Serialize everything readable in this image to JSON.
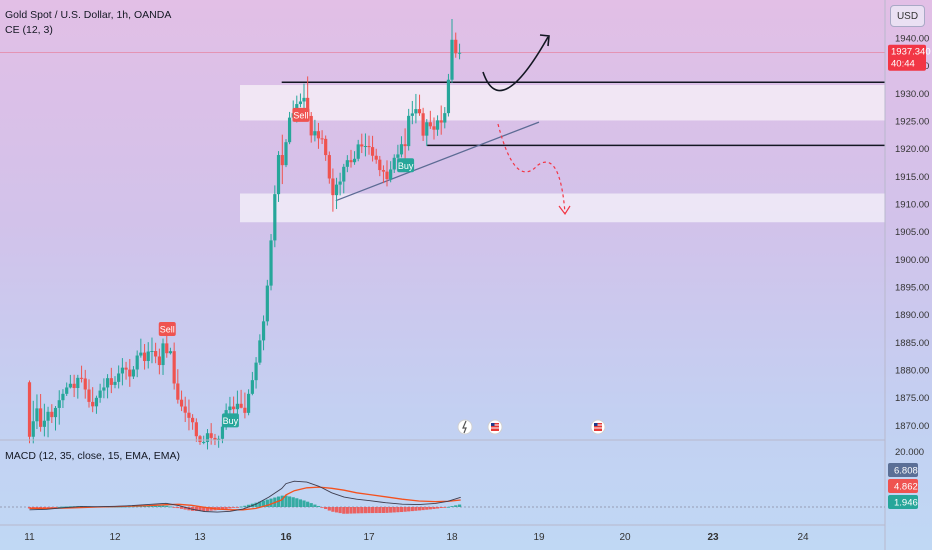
{
  "header": {
    "symbol_line": "Gold Spot / U.S. Dollar, 1h, OANDA",
    "indicator_line": "CE (12, 3)",
    "currency_button": "USD"
  },
  "price_badge": {
    "price": "1937.340",
    "countdown": "40:44",
    "color": "#f23645"
  },
  "macd": {
    "label": "MACD (12, 35, close, 15, EMA, EMA)",
    "axis_top_label": "20.000",
    "badges": [
      {
        "text": "6.808",
        "color": "#5b6f96"
      },
      {
        "text": "4.862",
        "color": "#ef5350"
      },
      {
        "text": "1.946",
        "color": "#26a69a"
      }
    ]
  },
  "colors": {
    "up": "#26a69a",
    "down": "#ef5350",
    "macd_line": "#3d3d4f",
    "signal_line": "#f4511e"
  },
  "chart_data": {
    "type": "candlestick",
    "instrument": "Gold Spot / U.S. Dollar",
    "timeframe": "1h",
    "y_ticks": [
      1940,
      1935,
      1930,
      1925,
      1920,
      1915,
      1910,
      1905,
      1900,
      1895,
      1890,
      1885,
      1880,
      1875,
      1870
    ],
    "y_tick_labels": [
      "1940.00",
      "1935.00",
      "1930.00",
      "1925.00",
      "1920.00",
      "1915.00",
      "1910.00",
      "1905.00",
      "1900.00",
      "1895.00",
      "1890.00",
      "1885.00",
      "1880.00",
      "1875.00",
      "1870.00"
    ],
    "x_ticks": [
      "11",
      "12",
      "13",
      "16",
      "17",
      "18",
      "19",
      "20",
      "23",
      "24"
    ],
    "x_tick_days": [
      11,
      12,
      13,
      16,
      17,
      18,
      19,
      20,
      23,
      24
    ],
    "current_price": 1937.34,
    "ohlc": [
      [
        11,
        1877.78,
        1878.09,
        1866.76,
        1867.93
      ],
      [
        11.044,
        1867.93,
        1874.43,
        1866.74,
        1870.73
      ],
      [
        11.087,
        1870.73,
        1875.59,
        1869.32,
        1873.06
      ],
      [
        11.13,
        1873.06,
        1875.66,
        1868.85,
        1869.72
      ],
      [
        11.174,
        1869.72,
        1873.9,
        1867.99,
        1870.83
      ],
      [
        11.217,
        1870.83,
        1873.35,
        1867.84,
        1872.44
      ],
      [
        11.261,
        1872.44,
        1873.82,
        1870.42,
        1871.48
      ],
      [
        11.304,
        1871.48,
        1873.49,
        1869.06,
        1873.14
      ],
      [
        11.348,
        1873.14,
        1876.34,
        1870.12,
        1874.54
      ],
      [
        11.391,
        1874.54,
        1876.54,
        1873.13,
        1875.69
      ],
      [
        11.435,
        1875.69,
        1877.74,
        1875.3,
        1876.84
      ],
      [
        11.478,
        1876.84,
        1879.11,
        1876.66,
        1877.51
      ],
      [
        11.522,
        1877.51,
        1879.14,
        1875.11,
        1876.74
      ],
      [
        11.565,
        1876.74,
        1879.12,
        1874.82,
        1878.58
      ],
      [
        11.609,
        1878.58,
        1880.78,
        1877.74,
        1878.46
      ],
      [
        11.652,
        1878.46,
        1880.02,
        1874.82,
        1876.47
      ],
      [
        11.696,
        1876.47,
        1878.31,
        1873.2,
        1874.23
      ],
      [
        11.739,
        1874.23,
        1876.9,
        1872.37,
        1873.43
      ],
      [
        11.783,
        1873.43,
        1875.36,
        1872.08,
        1874.97
      ],
      [
        11.826,
        1874.97,
        1877.51,
        1874.08,
        1876.28
      ],
      [
        11.87,
        1876.28,
        1878.49,
        1874.89,
        1876.84
      ],
      [
        11.913,
        1876.84,
        1879.25,
        1874.87,
        1878.52
      ],
      [
        11.957,
        1878.52,
        1880.39,
        1875.82,
        1877.3
      ],
      [
        12,
        1877.3,
        1878.88,
        1876.7,
        1877.85
      ],
      [
        12.043,
        1877.85,
        1880.82,
        1876.66,
        1879.37
      ],
      [
        12.087,
        1879.37,
        1882.15,
        1877.22,
        1880.42
      ],
      [
        12.13,
        1880.42,
        1881.47,
        1878.25,
        1880.07
      ],
      [
        12.174,
        1880.07,
        1881.98,
        1876.95,
        1878.82
      ],
      [
        12.217,
        1878.82,
        1880.71,
        1878.37,
        1880.09
      ],
      [
        12.261,
        1880.09,
        1883.52,
        1878.7,
        1882.61
      ],
      [
        12.304,
        1882.61,
        1885.66,
        1882.23,
        1883.14
      ],
      [
        12.348,
        1883.14,
        1884.69,
        1880.07,
        1881.62
      ],
      [
        12.391,
        1881.62,
        1885.03,
        1880.27,
        1883.34
      ],
      [
        12.435,
        1883.34,
        1885.86,
        1881.22,
        1883.43
      ],
      [
        12.478,
        1883.43,
        1884.92,
        1881.22,
        1882.44
      ],
      [
        12.522,
        1882.44,
        1883.86,
        1879.21,
        1880.89
      ],
      [
        12.565,
        1880.89,
        1885.68,
        1879.1,
        1884.81
      ],
      [
        12.609,
        1884.81,
        1886.69,
        1882.21,
        1883.03
      ],
      [
        12.652,
        1883.03,
        1884.02,
        1882.8,
        1883.4
      ],
      [
        12.696,
        1883.4,
        1884.96,
        1876.46,
        1877.56
      ],
      [
        12.739,
        1877.56,
        1880.14,
        1873.92,
        1874.63
      ],
      [
        12.783,
        1874.63,
        1876.28,
        1872.57,
        1873.4
      ],
      [
        12.826,
        1873.4,
        1875.17,
        1870.6,
        1872.28
      ],
      [
        12.87,
        1872.28,
        1874.66,
        1869.09,
        1871.35
      ],
      [
        12.913,
        1871.35,
        1872.02,
        1869.19,
        1870.55
      ],
      [
        12.957,
        1870.55,
        1871.26,
        1867.02,
        1868.03
      ],
      [
        13,
        1868.03,
        1868.24,
        1866.46,
        1866.98
      ],
      [
        13.043,
        1866.98,
        1868.13,
        1866.58,
        1866.99
      ],
      [
        13.087,
        1866.99,
        1869.33,
        1865.64,
        1868.57
      ],
      [
        13.13,
        1868.57,
        1870.4,
        1866.5,
        1867.72
      ],
      [
        13.174,
        1867.72,
        1868.44,
        1866.43,
        1867.36
      ],
      [
        13.217,
        1867.36,
        1868.13,
        1865.94,
        1867.56
      ],
      [
        13.261,
        1867.56,
        1870.8,
        1866.77,
        1869.76
      ],
      [
        13.304,
        1869.76,
        1873.95,
        1869.17,
        1872.75
      ],
      [
        13.348,
        1872.75,
        1875.14,
        1872.05,
        1873.39
      ],
      [
        13.391,
        1873.39,
        1875.2,
        1871.34,
        1872.91
      ],
      [
        13.435,
        1872.91,
        1876.27,
        1871.17,
        1873.89
      ],
      [
        13.478,
        1873.89,
        1876.41,
        1873.07,
        1873.17
      ],
      [
        13.522,
        1873.17,
        1875.92,
        1871.25,
        1872.25
      ],
      [
        13.565,
        1872.25,
        1876.51,
        1871.81,
        1875.69
      ],
      [
        13.609,
        1875.69,
        1879.65,
        1875.43,
        1878.16
      ],
      [
        13.652,
        1878.16,
        1882.33,
        1876.64,
        1881.33
      ],
      [
        13.696,
        1881.33,
        1886.45,
        1880.92,
        1885.35
      ],
      [
        13.739,
        1885.35,
        1889.86,
        1883.56,
        1888.79
      ],
      [
        13.783,
        1888.79,
        1896.29,
        1888.03,
        1895.25
      ],
      [
        13.826,
        1895.25,
        1904.57,
        1894.39,
        1903.42
      ],
      [
        13.87,
        1903.42,
        1913.36,
        1902.19,
        1911.78
      ],
      [
        13.913,
        1911.78,
        1919.56,
        1910.37,
        1918.85
      ],
      [
        13.957,
        1918.85,
        1922.53,
        1913.6,
        1917.02
      ],
      [
        16,
        1917.02,
        1921.72,
        1916.67,
        1921.17
      ],
      [
        16.043,
        1921.17,
        1926.64,
        1920.81,
        1925.61
      ],
      [
        16.087,
        1925.61,
        1928.71,
        1924.92,
        1926.41
      ],
      [
        16.13,
        1926.41,
        1929.59,
        1924.73,
        1928.06
      ],
      [
        16.174,
        1928.06,
        1929.97,
        1927.49,
        1928.53
      ],
      [
        16.217,
        1928.53,
        1931.75,
        1926.67,
        1929.18
      ],
      [
        16.261,
        1929.18,
        1933.06,
        1925.03,
        1925.91
      ],
      [
        16.304,
        1925.91,
        1926.62,
        1921.09,
        1922.39
      ],
      [
        16.348,
        1922.39,
        1925.21,
        1921.31,
        1923.16
      ],
      [
        16.391,
        1923.16,
        1924.65,
        1919.97,
        1921.86
      ],
      [
        16.435,
        1921.86,
        1923.34,
        1920.84,
        1921.77
      ],
      [
        16.478,
        1921.77,
        1922.38,
        1917.79,
        1918.84
      ],
      [
        16.522,
        1918.84,
        1919.49,
        1913.67,
        1914.61
      ],
      [
        16.565,
        1914.61,
        1916.42,
        1908.61,
        1911.6
      ],
      [
        16.609,
        1911.6,
        1914.73,
        1909.09,
        1913.5
      ],
      [
        16.652,
        1913.5,
        1915.65,
        1911.56,
        1914.06
      ],
      [
        16.696,
        1914.06,
        1917.25,
        1911.92,
        1916.72
      ],
      [
        16.739,
        1916.72,
        1918.83,
        1915.75,
        1917.92
      ],
      [
        16.783,
        1917.92,
        1919.78,
        1916.58,
        1917.55
      ],
      [
        16.826,
        1917.55,
        1919.55,
        1917.08,
        1918.17
      ],
      [
        16.87,
        1918.17,
        1921.59,
        1917.72,
        1920.77
      ],
      [
        16.913,
        1920.77,
        1922.71,
        1919.21,
        1920.4
      ],
      [
        16.957,
        1920.4,
        1922.75,
        1918.61,
        1920.48
      ],
      [
        17,
        1920.48,
        1922.35,
        1918.91,
        1920.28
      ],
      [
        17.043,
        1920.28,
        1922.32,
        1917.68,
        1918.72
      ],
      [
        17.087,
        1918.72,
        1919.98,
        1917.27,
        1918.01
      ],
      [
        17.13,
        1918.01,
        1918.68,
        1915.03,
        1916.13
      ],
      [
        17.174,
        1916.13,
        1916.98,
        1913.77,
        1915.85
      ],
      [
        17.217,
        1915.85,
        1917.89,
        1913.18,
        1914.51
      ],
      [
        17.261,
        1914.51,
        1917.74,
        1913.92,
        1916.24
      ],
      [
        17.304,
        1916.24,
        1918.98,
        1915.6,
        1918.35
      ],
      [
        17.348,
        1918.35,
        1920.7,
        1916.08,
        1918.96
      ],
      [
        17.391,
        1918.96,
        1922.25,
        1918.41,
        1920.8
      ],
      [
        17.435,
        1920.8,
        1923.67,
        1917.72,
        1920.46
      ],
      [
        17.478,
        1920.46,
        1927.19,
        1919.66,
        1925.93
      ],
      [
        17.522,
        1925.93,
        1928.62,
        1924.42,
        1926.37
      ],
      [
        17.565,
        1926.37,
        1929.89,
        1924.58,
        1927.15
      ],
      [
        17.609,
        1927.15,
        1929.76,
        1925.93,
        1926.4
      ],
      [
        17.652,
        1926.4,
        1927.38,
        1921.39,
        1922.35
      ],
      [
        17.696,
        1922.35,
        1925.34,
        1920.47,
        1924.77
      ],
      [
        17.739,
        1924.77,
        1926.84,
        1923.57,
        1924.04
      ],
      [
        17.783,
        1924.04,
        1925.64,
        1921.65,
        1923.43
      ],
      [
        17.826,
        1923.43,
        1926.02,
        1922.32,
        1925.12
      ],
      [
        17.87,
        1925.12,
        1927.8,
        1922.52,
        1924.72
      ],
      [
        17.913,
        1924.72,
        1927.52,
        1923.67,
        1926.42
      ],
      [
        17.957,
        1926.42,
        1933.51,
        1925.81,
        1932.46
      ],
      [
        18,
        1932.46,
        1943.43,
        1931.87,
        1939.68
      ],
      [
        18.043,
        1939.68,
        1940.98,
        1936.43,
        1937.23
      ],
      [
        18.087,
        1937.23,
        1938.97,
        1936.15,
        1937.34
      ]
    ],
    "zones": [
      {
        "from": 1925.1,
        "to": 1931.5,
        "color": "#f5ecf6"
      },
      {
        "from": 1906.7,
        "to": 1911.9,
        "color": "#f1ecf8"
      }
    ],
    "horizontal_lines": [
      {
        "price": 1932.0,
        "from_day": 15.95
      },
      {
        "price": 1920.6,
        "from_day": 17.7
      }
    ],
    "trendline": {
      "from": [
        16.6,
        1910.6
      ],
      "to": [
        19.0,
        1924.8
      ]
    },
    "signals": [
      {
        "label": "Sell",
        "day": 12.609,
        "price": 1887.4,
        "color": "#ef5350"
      },
      {
        "label": "Buy",
        "day": 13.348,
        "price": 1870.9,
        "color": "#26a69a"
      },
      {
        "label": "Sell",
        "day": 16.174,
        "price": 1926.1,
        "color": "#ef5350"
      },
      {
        "label": "Buy",
        "day": 17.435,
        "price": 1917.0,
        "color": "#26a69a"
      }
    ],
    "macd_series": {
      "days": [
        11,
        11.2,
        11.4,
        11.6,
        11.8,
        12.0,
        12.2,
        12.4,
        12.6,
        12.75,
        12.9,
        13.05,
        13.2,
        13.35,
        13.5,
        13.65,
        13.8,
        13.95,
        16.0,
        16.1,
        16.25,
        16.4,
        16.55,
        16.7,
        16.85,
        17.0,
        17.2,
        17.4,
        17.6,
        17.8,
        17.95,
        18.1
      ],
      "macd": [
        -2.0,
        -1.6,
        -0.5,
        0.3,
        0.2,
        0.5,
        1.0,
        1.8,
        2.6,
        1.0,
        -1.5,
        -3.2,
        -3.6,
        -3.0,
        -1.5,
        2.0,
        7.0,
        13.0,
        16.5,
        18.2,
        17.5,
        14.5,
        10.0,
        7.0,
        5.5,
        4.5,
        3.0,
        2.0,
        1.7,
        2.5,
        4.0,
        6.8
      ],
      "signal": [
        -1.0,
        -1.0,
        -0.8,
        -0.4,
        0.0,
        0.3,
        0.6,
        1.0,
        1.6,
        1.9,
        1.2,
        -0.2,
        -1.4,
        -2.0,
        -2.0,
        -1.0,
        1.5,
        5.0,
        8.5,
        11.5,
        13.5,
        14.0,
        13.2,
        11.8,
        10.0,
        8.8,
        7.2,
        5.5,
        4.2,
        3.8,
        4.0,
        4.9
      ],
      "histogram": [
        -1.0,
        -0.6,
        0.3,
        0.7,
        0.2,
        0.2,
        0.4,
        0.8,
        1.0,
        -0.9,
        -2.7,
        -3.0,
        -2.2,
        -1.0,
        0.5,
        3.0,
        5.5,
        8.0,
        8.0,
        6.7,
        4.0,
        0.5,
        -3.2,
        -4.8,
        -4.5,
        -4.3,
        -4.2,
        -3.5,
        -2.5,
        -1.3,
        0.0,
        1.9
      ]
    }
  }
}
